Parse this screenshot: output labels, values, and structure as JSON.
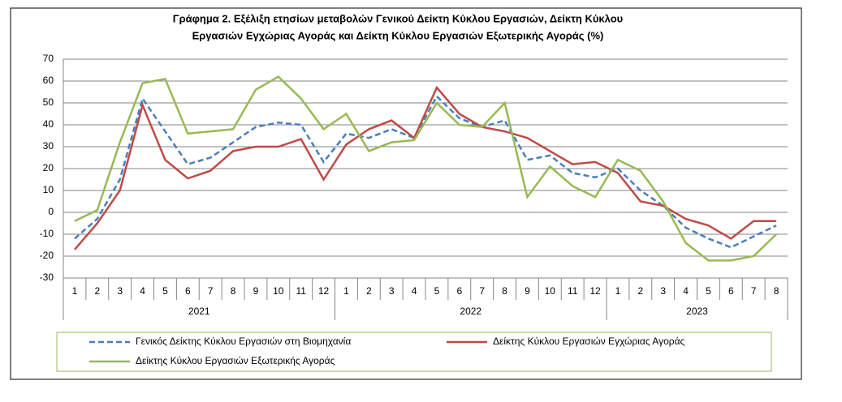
{
  "chart_data": {
    "type": "line",
    "title": [
      "Γράφημα 2. Εξέλιξη ετησίων μεταβολών Γενικού Δείκτη Κύκλου Εργασιών,  Δείκτη Κύκλου",
      "Εργασιών Εγχώριας Αγοράς και Δείκτη Κύκλου Εργασιών Εξωτερικής Αγοράς (%)"
    ],
    "categories": [
      "1",
      "2",
      "3",
      "4",
      "5",
      "6",
      "7",
      "8",
      "9",
      "10",
      "11",
      "12",
      "1",
      "2",
      "3",
      "4",
      "5",
      "6",
      "7",
      "8",
      "9",
      "10",
      "11",
      "12",
      "1",
      "2",
      "3",
      "4",
      "5",
      "6",
      "7",
      "8"
    ],
    "x_groups": [
      {
        "label": "2021",
        "count": 12
      },
      {
        "label": "2022",
        "count": 12
      },
      {
        "label": "2023",
        "count": 8
      }
    ],
    "ylim": [
      -30,
      70
    ],
    "yticks": [
      -30,
      -20,
      -10,
      0,
      10,
      20,
      30,
      40,
      50,
      60,
      70
    ],
    "grid": true,
    "series": [
      {
        "name": "Γενικός Δείκτης Κύκλου Εργασιών στη Βιομηχανία",
        "color": "#4a7ebb",
        "dash": true,
        "values": [
          -12,
          -3,
          15,
          52,
          37,
          22,
          25,
          32,
          39,
          41,
          40,
          23,
          36,
          34,
          38,
          34,
          53,
          43,
          39,
          42,
          24,
          26,
          18,
          16,
          20,
          10,
          3,
          -7,
          -12,
          -16,
          -11,
          -6
        ]
      },
      {
        "name": "Δείκτης Κύκλου Εργασιών Εγχώριας Αγοράς",
        "color": "#be4b48",
        "dash": false,
        "values": [
          -17,
          -5,
          10,
          49,
          24,
          15.5,
          19,
          28,
          30,
          30,
          33.5,
          15,
          31,
          38,
          42,
          34,
          57,
          45,
          39,
          37,
          34,
          28,
          22,
          23,
          18,
          5,
          3,
          -3,
          -6,
          -12,
          -4,
          -4
        ]
      },
      {
        "name": "Δείκτης Κύκλου Εργασιών Εξωτερικής Αγοράς",
        "color": "#98b954",
        "dash": false,
        "values": [
          -4,
          1,
          32,
          59,
          61,
          36,
          37,
          38,
          56,
          62,
          52,
          38,
          45,
          28,
          32,
          33,
          50,
          40,
          39,
          50,
          7,
          21,
          12,
          7,
          24,
          19,
          5,
          -14,
          -22,
          -22,
          -20,
          -10
        ]
      }
    ]
  }
}
